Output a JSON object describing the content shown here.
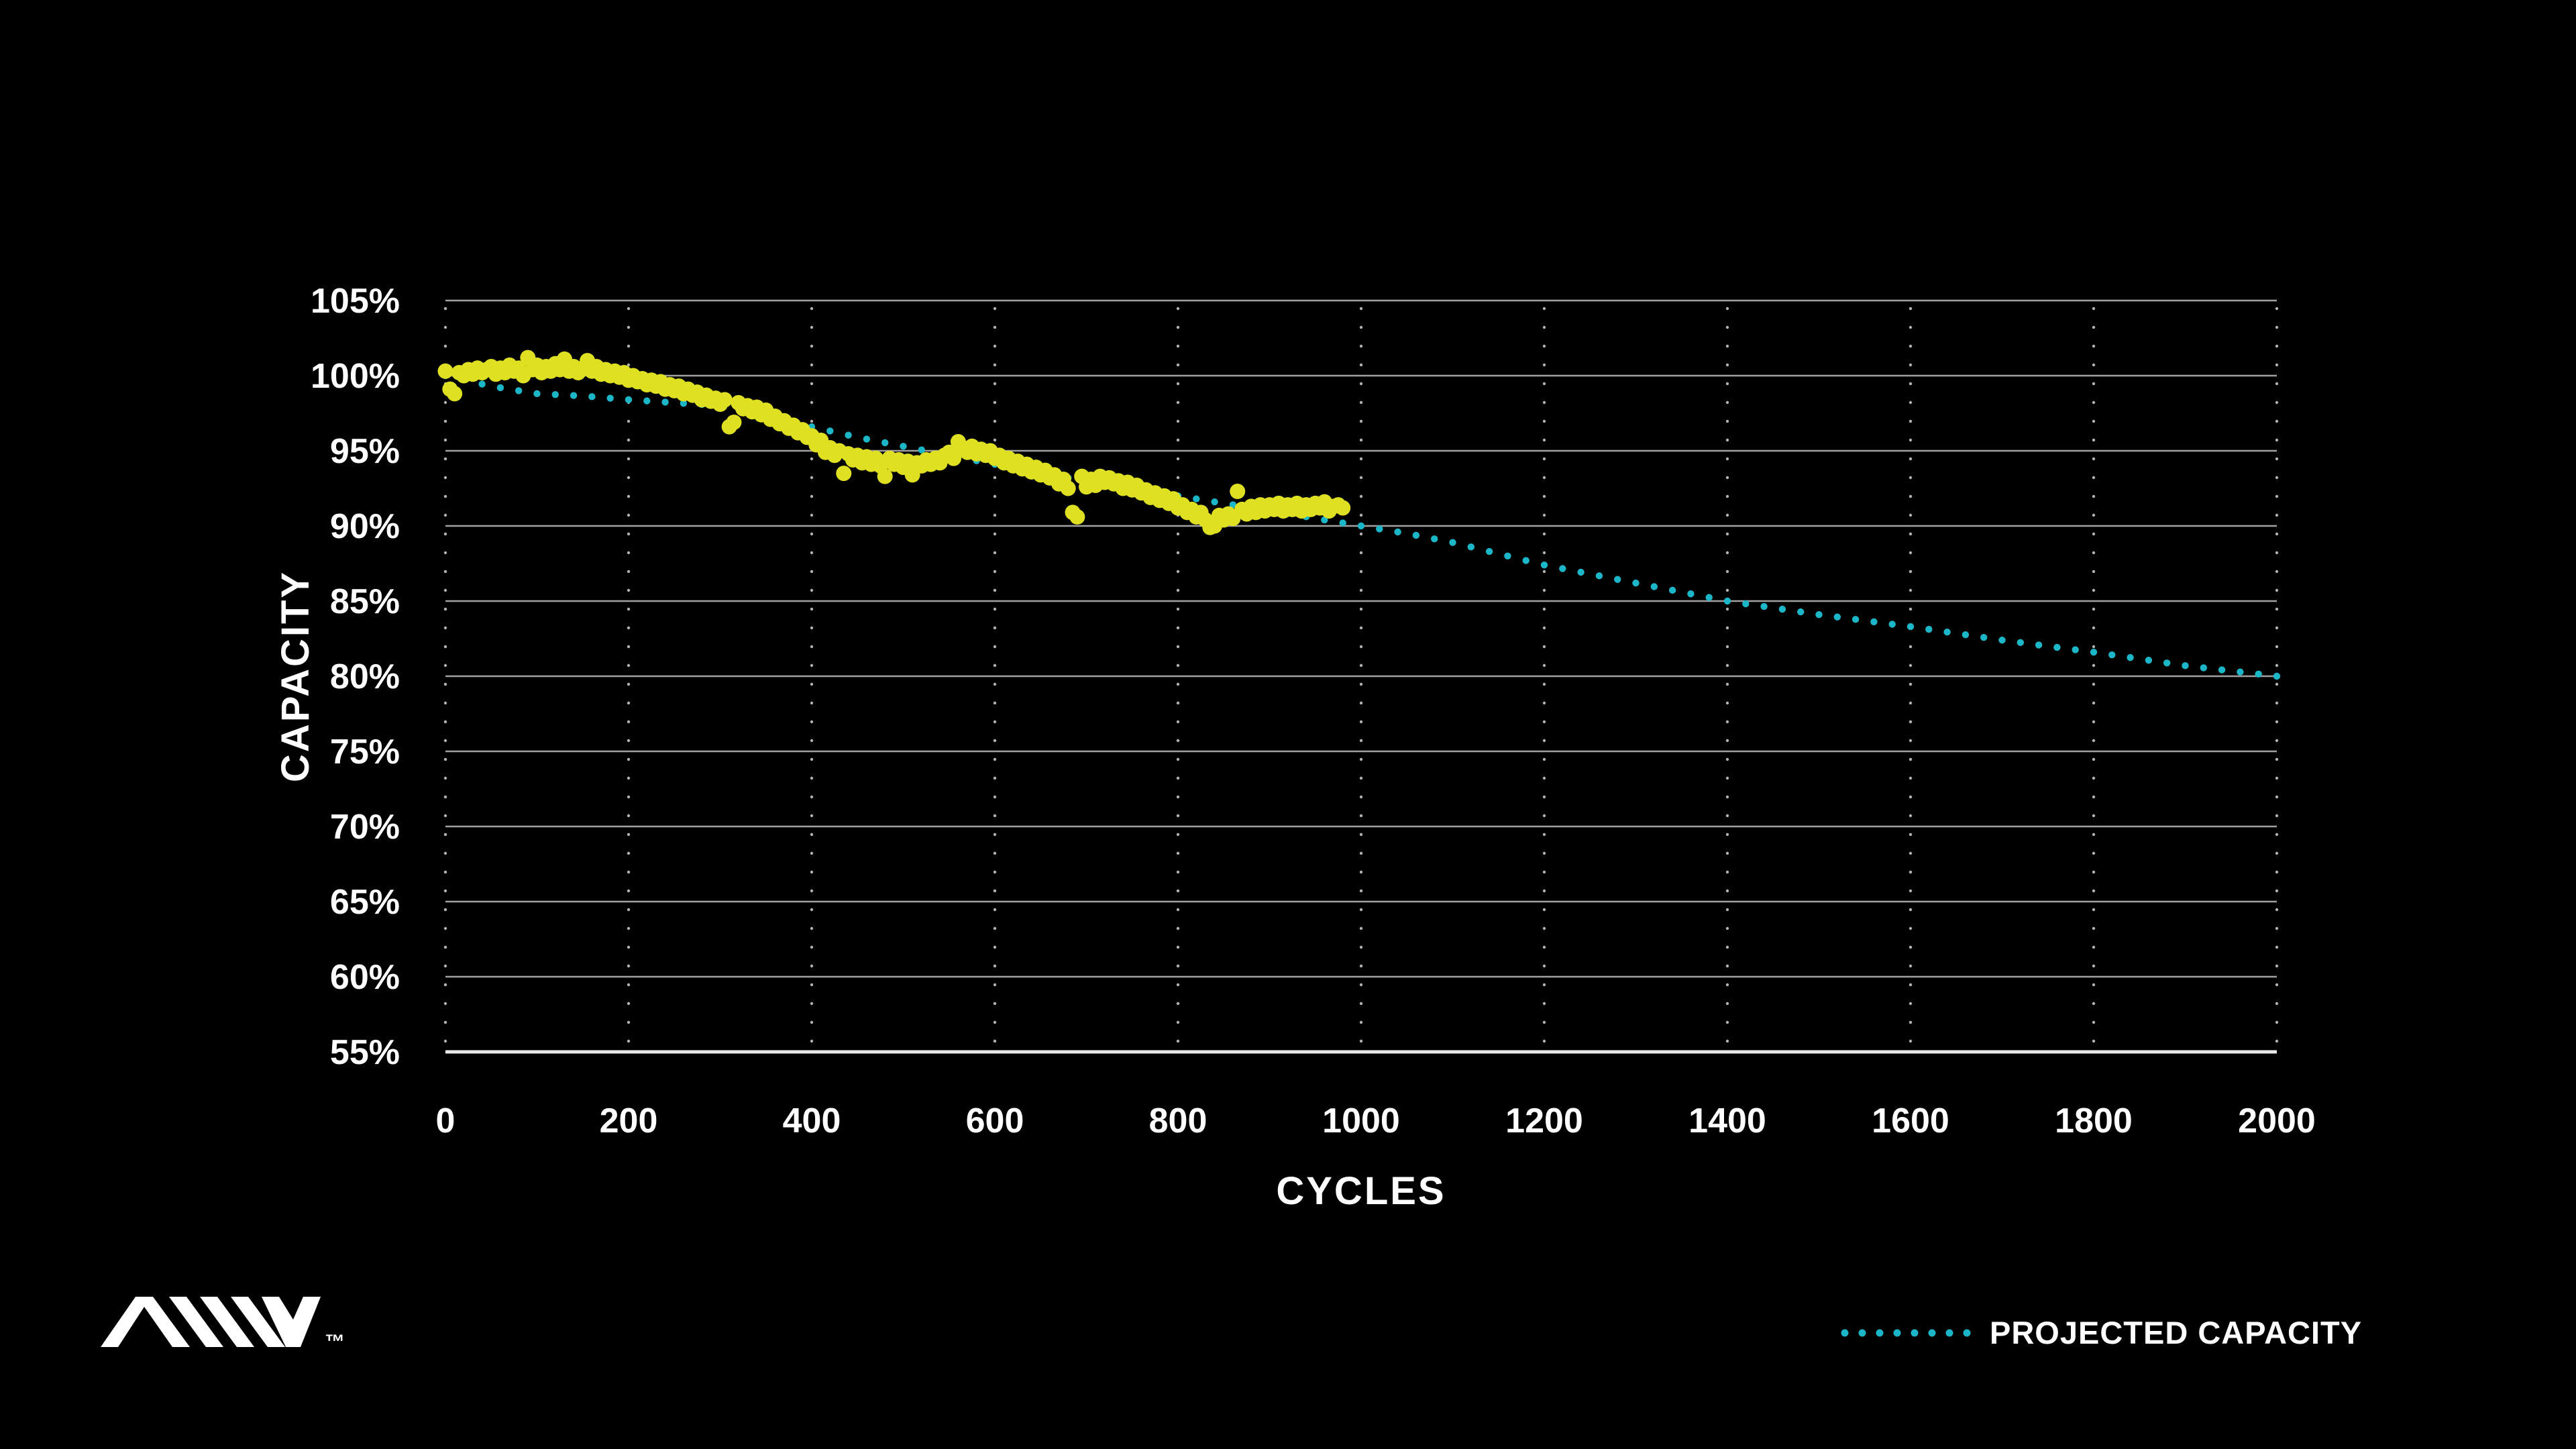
{
  "page": {
    "background": "#000000",
    "text_color": "#ffffff"
  },
  "branding": {
    "trademark": "™",
    "logo": "anv-logomark",
    "logo_color": "#ffffff"
  },
  "chart_data": {
    "type": "scatter",
    "title": "",
    "xlabel": "CYCLES",
    "ylabel": "CAPACITY",
    "xlim": [
      0,
      2000
    ],
    "ylim": [
      55,
      105
    ],
    "grid": {
      "horizontal": "solid",
      "vertical": "dotted",
      "grid_color": "#a0a0a0",
      "baseline_color": "#e8e8e8"
    },
    "x_ticks": {
      "values": [
        0,
        200,
        400,
        600,
        800,
        1000,
        1200,
        1400,
        1600,
        1800,
        2000
      ],
      "labels": [
        "0",
        "200",
        "400",
        "600",
        "800",
        "1000",
        "1200",
        "1400",
        "1600",
        "1800",
        "2000"
      ]
    },
    "y_ticks": {
      "values": [
        105,
        100,
        95,
        90,
        85,
        80,
        75,
        70,
        65,
        60,
        55
      ],
      "labels": [
        "105%",
        "100%",
        "95%",
        "90%",
        "85%",
        "80%",
        "75%",
        "70%",
        "65%",
        "60%",
        "55%"
      ]
    },
    "legend": {
      "position": "bottom-right",
      "entries": [
        {
          "label": "PROJECTED CAPACITY",
          "color": "#1cb6c9",
          "style": "dotted"
        }
      ]
    },
    "series": [
      {
        "name": "measured-capacity",
        "type": "scatter",
        "color": "#dfe021",
        "marker_radius": 11.5,
        "points": [
          [
            0,
            100.3
          ],
          [
            5,
            99.1
          ],
          [
            10,
            98.8
          ],
          [
            15,
            100.2
          ],
          [
            20,
            100.0
          ],
          [
            25,
            100.4
          ],
          [
            30,
            100.1
          ],
          [
            35,
            100.5
          ],
          [
            40,
            100.2
          ],
          [
            45,
            100.4
          ],
          [
            50,
            100.6
          ],
          [
            55,
            100.1
          ],
          [
            60,
            100.5
          ],
          [
            65,
            100.2
          ],
          [
            70,
            100.7
          ],
          [
            75,
            100.3
          ],
          [
            80,
            100.5
          ],
          [
            85,
            100.0
          ],
          [
            90,
            101.2
          ],
          [
            95,
            100.4
          ],
          [
            100,
            100.7
          ],
          [
            105,
            100.2
          ],
          [
            110,
            100.6
          ],
          [
            115,
            100.3
          ],
          [
            120,
            100.8
          ],
          [
            125,
            100.4
          ],
          [
            130,
            101.1
          ],
          [
            135,
            100.3
          ],
          [
            140,
            100.6
          ],
          [
            145,
            100.2
          ],
          [
            150,
            100.5
          ],
          [
            155,
            101.0
          ],
          [
            160,
            100.3
          ],
          [
            165,
            100.6
          ],
          [
            170,
            100.1
          ],
          [
            175,
            100.4
          ],
          [
            180,
            100.0
          ],
          [
            185,
            100.3
          ],
          [
            190,
            99.9
          ],
          [
            195,
            100.2
          ],
          [
            200,
            99.7
          ],
          [
            205,
            100.0
          ],
          [
            210,
            99.6
          ],
          [
            215,
            99.8
          ],
          [
            220,
            99.4
          ],
          [
            225,
            99.7
          ],
          [
            230,
            99.3
          ],
          [
            235,
            99.6
          ],
          [
            240,
            99.1
          ],
          [
            245,
            99.4
          ],
          [
            250,
            99.0
          ],
          [
            255,
            99.3
          ],
          [
            260,
            98.8
          ],
          [
            265,
            99.1
          ],
          [
            270,
            98.7
          ],
          [
            275,
            98.9
          ],
          [
            280,
            98.4
          ],
          [
            285,
            98.7
          ],
          [
            290,
            98.3
          ],
          [
            295,
            98.5
          ],
          [
            300,
            98.1
          ],
          [
            305,
            98.4
          ],
          [
            310,
            96.6
          ],
          [
            315,
            96.9
          ],
          [
            320,
            98.2
          ],
          [
            325,
            97.8
          ],
          [
            330,
            98.0
          ],
          [
            335,
            97.6
          ],
          [
            340,
            97.9
          ],
          [
            345,
            97.4
          ],
          [
            350,
            97.7
          ],
          [
            355,
            97.1
          ],
          [
            360,
            97.3
          ],
          [
            365,
            96.8
          ],
          [
            370,
            97.0
          ],
          [
            375,
            96.5
          ],
          [
            380,
            96.7
          ],
          [
            385,
            96.2
          ],
          [
            390,
            96.4
          ],
          [
            395,
            95.9
          ],
          [
            400,
            96.0
          ],
          [
            405,
            95.4
          ],
          [
            410,
            95.7
          ],
          [
            415,
            94.9
          ],
          [
            420,
            95.2
          ],
          [
            425,
            94.7
          ],
          [
            430,
            95.0
          ],
          [
            435,
            93.5
          ],
          [
            440,
            94.8
          ],
          [
            445,
            94.4
          ],
          [
            450,
            94.7
          ],
          [
            455,
            94.2
          ],
          [
            460,
            94.6
          ],
          [
            465,
            94.1
          ],
          [
            470,
            94.5
          ],
          [
            475,
            94.0
          ],
          [
            480,
            93.3
          ],
          [
            485,
            94.5
          ],
          [
            490,
            94.1
          ],
          [
            495,
            94.4
          ],
          [
            500,
            93.9
          ],
          [
            505,
            94.3
          ],
          [
            510,
            93.4
          ],
          [
            515,
            94.2
          ],
          [
            520,
            94.0
          ],
          [
            525,
            94.4
          ],
          [
            530,
            94.1
          ],
          [
            535,
            94.5
          ],
          [
            540,
            94.2
          ],
          [
            545,
            94.7
          ],
          [
            550,
            94.9
          ],
          [
            555,
            94.5
          ],
          [
            560,
            95.6
          ],
          [
            565,
            95.2
          ],
          [
            570,
            94.9
          ],
          [
            575,
            95.3
          ],
          [
            580,
            94.8
          ],
          [
            585,
            95.1
          ],
          [
            590,
            94.7
          ],
          [
            595,
            95.0
          ],
          [
            600,
            94.5
          ],
          [
            605,
            94.7
          ],
          [
            610,
            94.2
          ],
          [
            615,
            94.5
          ],
          [
            620,
            94.0
          ],
          [
            625,
            94.3
          ],
          [
            630,
            93.8
          ],
          [
            635,
            94.1
          ],
          [
            640,
            93.6
          ],
          [
            645,
            93.9
          ],
          [
            650,
            93.4
          ],
          [
            655,
            93.7
          ],
          [
            660,
            93.2
          ],
          [
            665,
            93.4
          ],
          [
            670,
            92.8
          ],
          [
            675,
            93.1
          ],
          [
            680,
            92.5
          ],
          [
            685,
            90.9
          ],
          [
            690,
            90.6
          ],
          [
            695,
            93.3
          ],
          [
            700,
            92.6
          ],
          [
            705,
            93.1
          ],
          [
            710,
            92.7
          ],
          [
            715,
            93.3
          ],
          [
            720,
            92.9
          ],
          [
            725,
            93.2
          ],
          [
            730,
            92.8
          ],
          [
            735,
            93.0
          ],
          [
            740,
            92.5
          ],
          [
            745,
            92.9
          ],
          [
            750,
            92.4
          ],
          [
            755,
            92.7
          ],
          [
            760,
            92.2
          ],
          [
            765,
            92.4
          ],
          [
            770,
            91.9
          ],
          [
            775,
            92.2
          ],
          [
            780,
            91.7
          ],
          [
            785,
            92.0
          ],
          [
            790,
            91.5
          ],
          [
            795,
            91.8
          ],
          [
            800,
            91.2
          ],
          [
            805,
            91.4
          ],
          [
            810,
            90.9
          ],
          [
            815,
            91.1
          ],
          [
            820,
            90.6
          ],
          [
            825,
            90.9
          ],
          [
            830,
            90.4
          ],
          [
            835,
            89.9
          ],
          [
            840,
            90.0
          ],
          [
            845,
            90.7
          ],
          [
            850,
            90.4
          ],
          [
            855,
            90.8
          ],
          [
            860,
            90.5
          ],
          [
            865,
            92.3
          ],
          [
            870,
            91.1
          ],
          [
            875,
            90.8
          ],
          [
            880,
            91.3
          ],
          [
            885,
            90.9
          ],
          [
            890,
            91.4
          ],
          [
            895,
            91.0
          ],
          [
            900,
            91.4
          ],
          [
            905,
            91.1
          ],
          [
            910,
            91.5
          ],
          [
            915,
            91.0
          ],
          [
            920,
            91.4
          ],
          [
            925,
            91.1
          ],
          [
            930,
            91.5
          ],
          [
            935,
            91.0
          ],
          [
            940,
            91.4
          ],
          [
            945,
            91.1
          ],
          [
            950,
            91.5
          ],
          [
            955,
            91.2
          ],
          [
            960,
            91.6
          ],
          [
            965,
            91.0
          ],
          [
            970,
            91.3
          ],
          [
            975,
            91.4
          ],
          [
            980,
            91.2
          ]
        ]
      },
      {
        "name": "projected-capacity",
        "type": "dotted-line",
        "color": "#1cb6c9",
        "dot_radius": 5.2,
        "dot_step_cycles": 20,
        "points": [
          [
            0,
            100.0
          ],
          [
            50,
            99.3
          ],
          [
            100,
            98.8
          ],
          [
            150,
            98.65
          ],
          [
            200,
            98.4
          ],
          [
            250,
            98.2
          ],
          [
            300,
            98.0
          ],
          [
            350,
            97.5
          ],
          [
            400,
            96.6
          ],
          [
            450,
            95.9
          ],
          [
            500,
            95.3
          ],
          [
            550,
            94.7
          ],
          [
            600,
            94.1
          ],
          [
            650,
            93.5
          ],
          [
            700,
            93.0
          ],
          [
            750,
            92.5
          ],
          [
            800,
            92.0
          ],
          [
            850,
            91.5
          ],
          [
            900,
            91.05
          ],
          [
            950,
            90.5
          ],
          [
            1000,
            90.0
          ],
          [
            1050,
            89.5
          ],
          [
            1100,
            88.9
          ],
          [
            1150,
            88.15
          ],
          [
            1200,
            87.4
          ],
          [
            1300,
            86.2
          ],
          [
            1400,
            85.0
          ],
          [
            1500,
            84.1
          ],
          [
            1600,
            83.3
          ],
          [
            1700,
            82.4
          ],
          [
            1800,
            81.6
          ],
          [
            1900,
            80.7
          ],
          [
            2000,
            80.0
          ]
        ]
      }
    ]
  }
}
